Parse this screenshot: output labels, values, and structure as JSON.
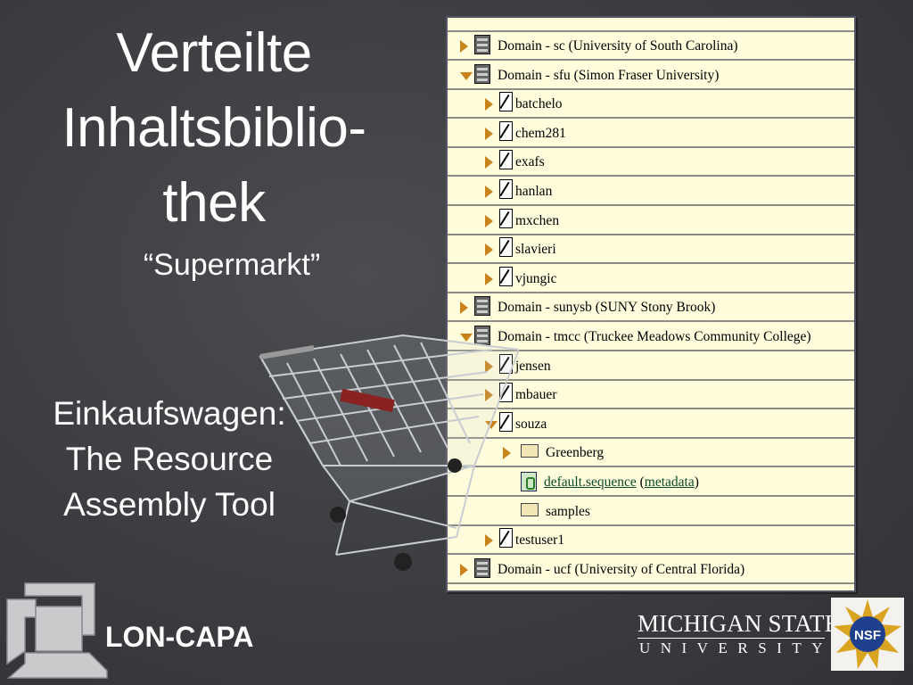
{
  "slide": {
    "title_lines": [
      "Verteilte",
      "Inhaltsbiblio-",
      "thek"
    ],
    "subtitle": "“Supermarkt”",
    "cart_caption_lines": [
      "Einkaufswagen:",
      "The Resource",
      "Assembly Tool"
    ]
  },
  "tree": {
    "rows": [
      {
        "label": "Domain - sc (University of South Carolina)",
        "icon": "server-icon",
        "state": "closed",
        "level": 0
      },
      {
        "label": "Domain - sfu (Simon Fraser University)",
        "icon": "server-icon",
        "state": "open",
        "level": 0
      },
      {
        "label": "batchelo",
        "icon": "user-file-icon",
        "state": "closed",
        "level": 1
      },
      {
        "label": "chem281",
        "icon": "user-file-icon",
        "state": "closed",
        "level": 1
      },
      {
        "label": "exafs",
        "icon": "user-file-icon",
        "state": "closed",
        "level": 1
      },
      {
        "label": "hanlan",
        "icon": "user-file-icon",
        "state": "closed",
        "level": 1
      },
      {
        "label": "mxchen",
        "icon": "user-file-icon",
        "state": "closed",
        "level": 1
      },
      {
        "label": "slavieri",
        "icon": "user-file-icon",
        "state": "closed",
        "level": 1
      },
      {
        "label": "vjungic",
        "icon": "user-file-icon",
        "state": "closed",
        "level": 1
      },
      {
        "label": "Domain - sunysb (SUNY Stony Brook)",
        "icon": "server-icon",
        "state": "closed",
        "level": 0
      },
      {
        "label": "Domain - tmcc (Truckee Meadows Community College)",
        "icon": "server-icon",
        "state": "open",
        "level": 0
      },
      {
        "label": "jensen",
        "icon": "user-file-icon",
        "state": "closed",
        "level": 1
      },
      {
        "label": "mbauer",
        "icon": "user-file-icon",
        "state": "closed",
        "level": 1
      },
      {
        "label": "souza",
        "icon": "user-file-icon",
        "state": "open",
        "level": 1
      },
      {
        "label": "Greenberg",
        "icon": "folder-icon",
        "state": "closed",
        "level": 2
      },
      {
        "label": "default.sequence",
        "link2": "metadata",
        "icon": "sequence-icon",
        "state": "none",
        "level": 2
      },
      {
        "label": "samples",
        "icon": "folder-icon",
        "state": "none",
        "level": 2
      },
      {
        "label": "testuser1",
        "icon": "user-file-icon",
        "state": "closed",
        "level": 1
      },
      {
        "label": "Domain - ucf (University of Central Florida)",
        "icon": "server-icon",
        "state": "closed",
        "level": 0
      }
    ]
  },
  "logos": {
    "loncapa": "LON-CAPA",
    "msu_name": "MICHIGAN STATE",
    "msu_sub": "UNIVERSITY",
    "nsf": "NSF"
  },
  "colors": {
    "background": "#3b3d41",
    "panel": "#fffddc",
    "arrow": "#c8831a",
    "link": "#0a4a2a"
  }
}
